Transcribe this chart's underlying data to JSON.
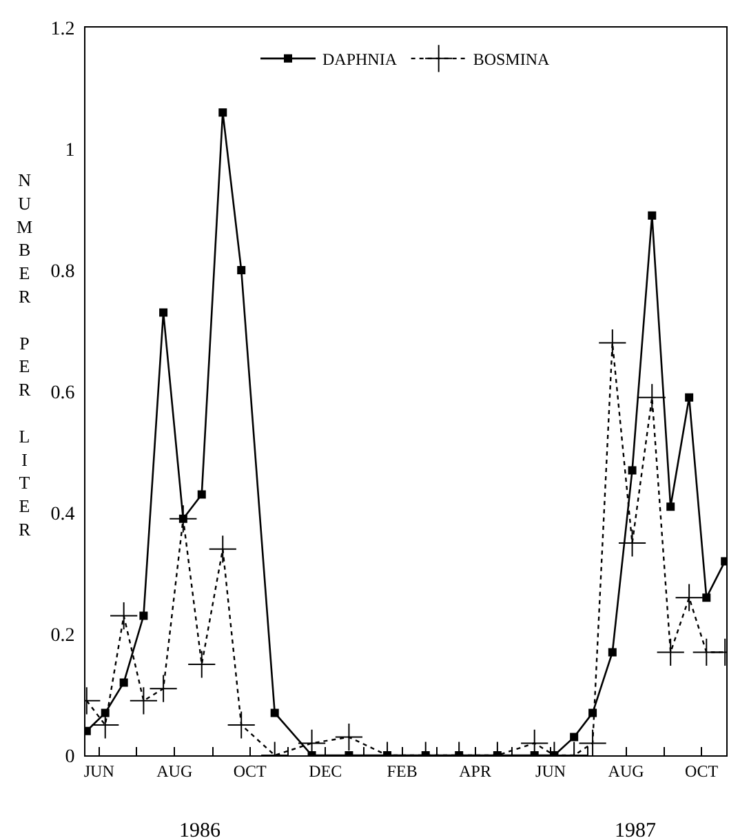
{
  "chart_data": {
    "type": "line",
    "ylabel": "NUMBER PER LITER",
    "x": [
      "1986-05-22",
      "1986-06-06",
      "1986-06-21",
      "1986-07-07",
      "1986-07-23",
      "1986-08-08",
      "1986-08-23",
      "1986-09-09",
      "1986-09-24",
      "1986-10-21",
      "1986-11-20",
      "1986-12-20",
      "1987-01-20",
      "1987-02-20",
      "1987-03-19",
      "1987-04-19",
      "1987-05-19",
      "1987-06-04",
      "1987-06-20",
      "1987-07-05",
      "1987-07-21",
      "1987-08-06",
      "1987-08-22",
      "1987-09-06",
      "1987-09-21",
      "1987-10-05",
      "1987-10-20"
    ],
    "series": [
      {
        "name": "DAPHNIA",
        "color": "#000000",
        "marker": "square",
        "line_style": "solid",
        "values": [
          0.04,
          0.07,
          0.12,
          0.23,
          0.73,
          0.39,
          0.43,
          1.06,
          0.8,
          0.07,
          0,
          0,
          0,
          0,
          0,
          0,
          0,
          0,
          0.03,
          0.07,
          0.17,
          0.47,
          0.89,
          0.41,
          0.59,
          0.26,
          0.32
        ]
      },
      {
        "name": "BOSMINA",
        "color": "#000000",
        "marker": "cross",
        "line_style": "dotted",
        "values": [
          0.09,
          0.05,
          0.23,
          0.09,
          0.11,
          0.39,
          0.15,
          0.34,
          0.05,
          0,
          0.02,
          0.03,
          0,
          0,
          0,
          0,
          0.02,
          0,
          0,
          0.02,
          0.68,
          0.35,
          0.59,
          0.17,
          0.26,
          0.17,
          0.17
        ]
      }
    ],
    "xlim": [
      "1986-05-21",
      "1987-10-21"
    ],
    "xticks": [
      {
        "value": "1986-06-01",
        "label": "JUN"
      },
      {
        "value": "1986-07-01",
        "label": null
      },
      {
        "value": "1986-08-01",
        "label": "AUG"
      },
      {
        "value": "1986-09-01",
        "label": null
      },
      {
        "value": "1986-10-01",
        "label": "OCT"
      },
      {
        "value": "1986-11-01",
        "label": null
      },
      {
        "value": "1986-12-01",
        "label": "DEC"
      },
      {
        "value": "1987-01-01",
        "label": null
      },
      {
        "value": "1987-02-01",
        "label": "FEB"
      },
      {
        "value": "1987-03-01",
        "label": null
      },
      {
        "value": "1987-04-01",
        "label": "APR"
      },
      {
        "value": "1987-05-01",
        "label": null
      },
      {
        "value": "1987-06-01",
        "label": "JUN"
      },
      {
        "value": "1987-07-01",
        "label": null
      },
      {
        "value": "1987-08-01",
        "label": "AUG"
      },
      {
        "value": "1987-09-01",
        "label": null
      },
      {
        "value": "1987-10-01",
        "label": "OCT"
      }
    ],
    "ylim": [
      0,
      1.2
    ],
    "yticks": [
      0,
      0.2,
      0.4,
      0.6,
      0.8,
      1,
      1.2
    ],
    "annotations": [
      "1986",
      "1987"
    ],
    "grid": false,
    "legend": "top"
  }
}
